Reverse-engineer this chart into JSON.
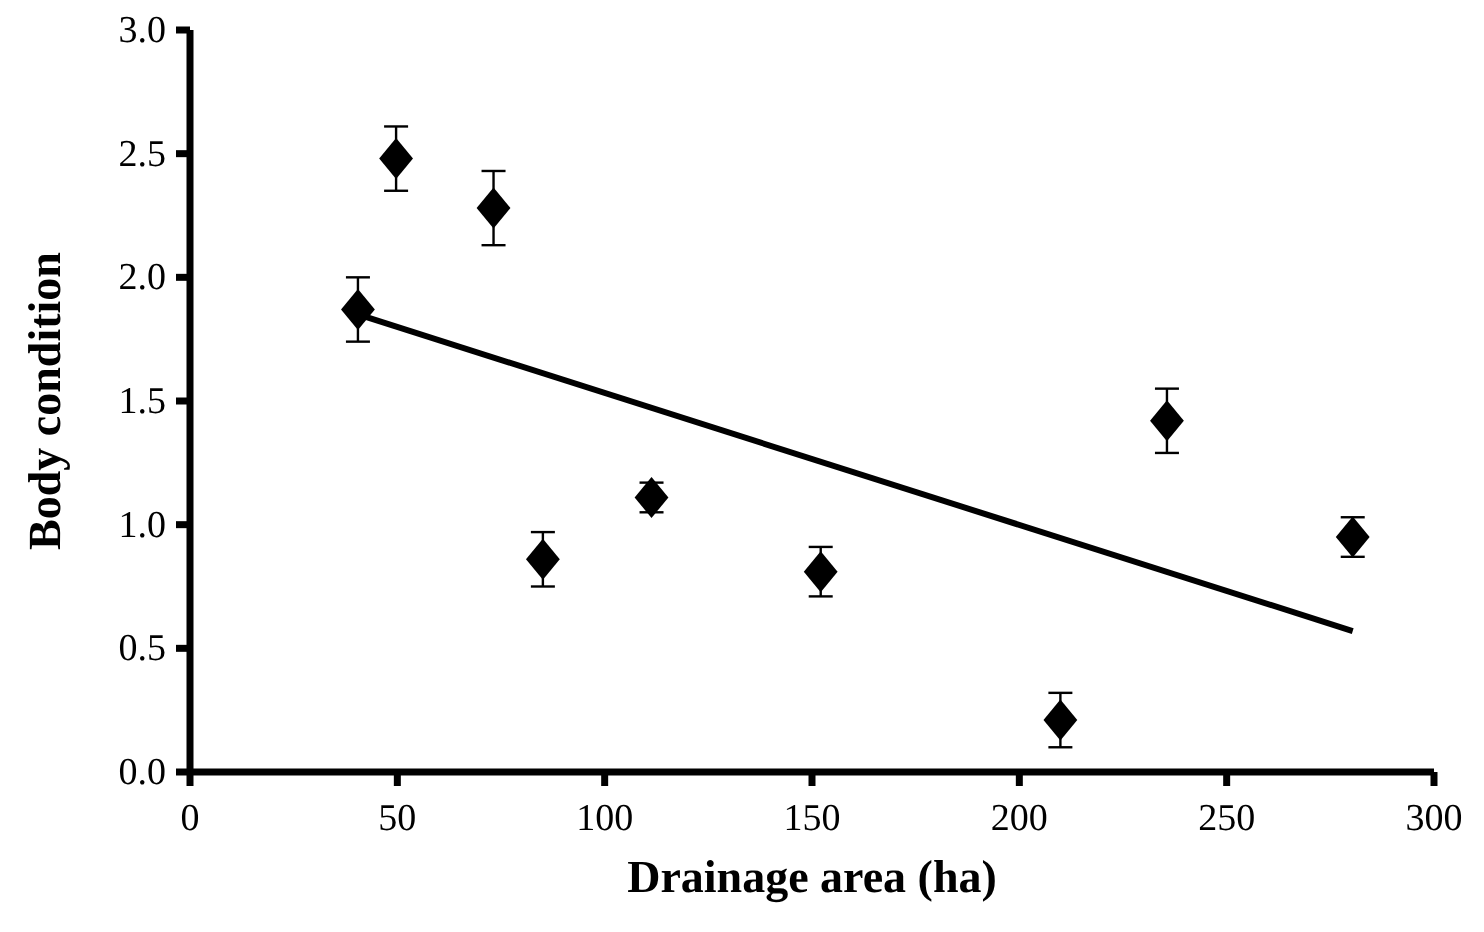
{
  "chart_data": {
    "type": "scatter",
    "xlabel": "Drainage area (ha)",
    "ylabel": "Body condition",
    "xlim": [
      0,
      300
    ],
    "xticks": [
      0,
      50,
      100,
      150,
      200,
      250,
      300
    ],
    "ylim": [
      0,
      3
    ],
    "yticks": [
      {
        "value": 0,
        "label": "0.0"
      },
      {
        "value": 0.5,
        "label": "0.5"
      },
      {
        "value": 1,
        "label": "1.0"
      },
      {
        "value": 1.5,
        "label": "1.5"
      },
      {
        "value": 2,
        "label": "2.0"
      },
      {
        "value": 2.5,
        "label": "2.5"
      },
      {
        "value": 3,
        "label": "3.0"
      }
    ],
    "grid": false,
    "marker": "diamond",
    "series": [
      {
        "color": "#000000",
        "x": [
          40.5,
          49.7,
          73.2,
          85.1,
          111.3,
          152.1,
          209.9,
          235.6,
          280.4
        ],
        "values": [
          1.87,
          2.48,
          2.28,
          0.86,
          1.11,
          0.81,
          0.21,
          1.42,
          0.95
        ],
        "errors": [
          0.13,
          0.13,
          0.15,
          0.11,
          0.06,
          0.1,
          0.11,
          0.13,
          0.08
        ]
      },
      {
        "type": "line",
        "color": "#000000",
        "x": [
          40.5,
          280.4
        ],
        "values": [
          1.85,
          0.57
        ],
        "marker": "none",
        "line_style": "solid"
      }
    ]
  }
}
